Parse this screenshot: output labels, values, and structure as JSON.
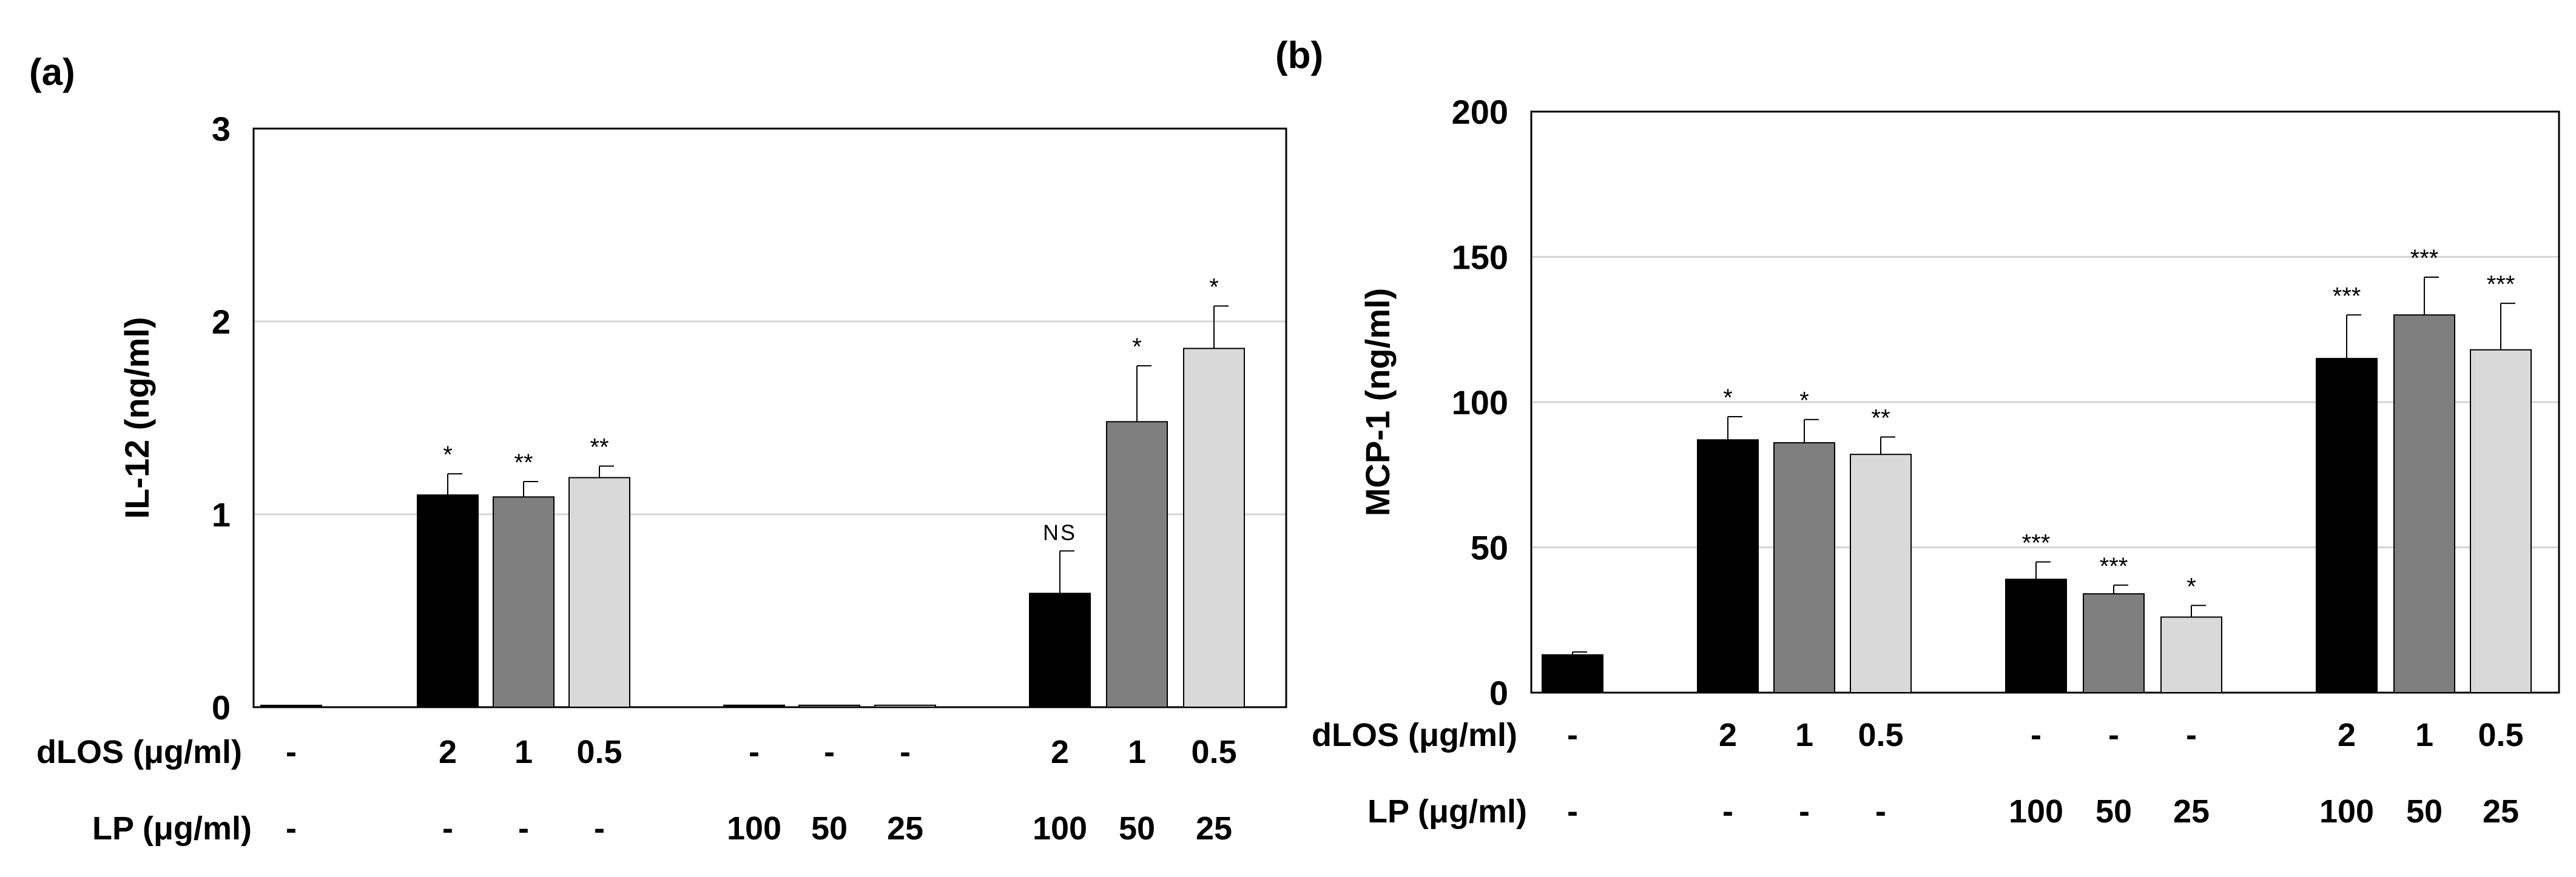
{
  "chart_data": [
    {
      "type": "bar",
      "panel_label": "(a)",
      "title": "",
      "xlabel": "",
      "ylabel": "IL-12 (ng/ml)",
      "ylim": [
        0,
        3
      ],
      "yticks": [
        0,
        1,
        2,
        3
      ],
      "grid": true,
      "row_labels": [
        "dLOS (μg/ml)",
        "LP (μg/ml)"
      ],
      "bars": [
        {
          "dLOS": "-",
          "LP": "-",
          "value": 0,
          "error": 0,
          "sig": "",
          "color": "#000000"
        },
        {
          "dLOS": "2",
          "LP": "-",
          "value": 1.1,
          "error": 0.11,
          "sig": "*",
          "color": "#000000"
        },
        {
          "dLOS": "1",
          "LP": "-",
          "value": 1.09,
          "error": 0.08,
          "sig": "**",
          "color": "#7f7f7f"
        },
        {
          "dLOS": "0.5",
          "LP": "-",
          "value": 1.19,
          "error": 0.06,
          "sig": "**",
          "color": "#d9d9d9"
        },
        {
          "dLOS": "-",
          "LP": "100",
          "value": 0.01,
          "error": 0,
          "sig": "",
          "color": "#000000"
        },
        {
          "dLOS": "-",
          "LP": "50",
          "value": 0.01,
          "error": 0,
          "sig": "",
          "color": "#7f7f7f"
        },
        {
          "dLOS": "-",
          "LP": "25",
          "value": 0.01,
          "error": 0,
          "sig": "",
          "color": "#d9d9d9"
        },
        {
          "dLOS": "2",
          "LP": "100",
          "value": 0.59,
          "error": 0.22,
          "sig": "NS",
          "color": "#000000"
        },
        {
          "dLOS": "1",
          "LP": "50",
          "value": 1.48,
          "error": 0.29,
          "sig": "*",
          "color": "#7f7f7f"
        },
        {
          "dLOS": "0.5",
          "LP": "25",
          "value": 1.86,
          "error": 0.22,
          "sig": "*",
          "color": "#d9d9d9"
        }
      ]
    },
    {
      "type": "bar",
      "panel_label": "(b)",
      "title": "",
      "xlabel": "",
      "ylabel": "MCP-1 (ng/ml)",
      "ylim": [
        0,
        200
      ],
      "yticks": [
        0,
        50,
        100,
        150,
        200
      ],
      "grid": true,
      "row_labels": [
        "dLOS (μg/ml)",
        "LP (μg/ml)"
      ],
      "bars": [
        {
          "dLOS": "-",
          "LP": "-",
          "value": 13,
          "error": 1,
          "sig": "",
          "color": "#000000"
        },
        {
          "dLOS": "2",
          "LP": "-",
          "value": 87,
          "error": 8,
          "sig": "*",
          "color": "#000000"
        },
        {
          "dLOS": "1",
          "LP": "-",
          "value": 86,
          "error": 8,
          "sig": "*",
          "color": "#7f7f7f"
        },
        {
          "dLOS": "0.5",
          "LP": "-",
          "value": 82,
          "error": 6,
          "sig": "**",
          "color": "#d9d9d9"
        },
        {
          "dLOS": "-",
          "LP": "100",
          "value": 39,
          "error": 6,
          "sig": "***",
          "color": "#000000"
        },
        {
          "dLOS": "-",
          "LP": "50",
          "value": 34,
          "error": 3,
          "sig": "***",
          "color": "#7f7f7f"
        },
        {
          "dLOS": "-",
          "LP": "25",
          "value": 26,
          "error": 4,
          "sig": "*",
          "color": "#d9d9d9"
        },
        {
          "dLOS": "2",
          "LP": "100",
          "value": 115,
          "error": 15,
          "sig": "***",
          "color": "#000000"
        },
        {
          "dLOS": "1",
          "LP": "50",
          "value": 130,
          "error": 13,
          "sig": "***",
          "color": "#7f7f7f"
        },
        {
          "dLOS": "0.5",
          "LP": "25",
          "value": 118,
          "error": 16,
          "sig": "***",
          "color": "#d9d9d9"
        }
      ]
    }
  ]
}
